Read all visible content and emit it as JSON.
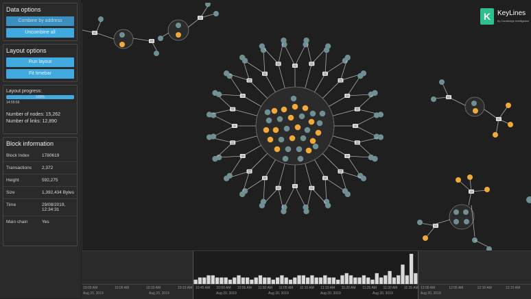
{
  "data_options": {
    "title": "Data options",
    "combine_label": "Combine by address",
    "uncombine_label": "Uncombine all"
  },
  "layout_options": {
    "title": "Layout options",
    "run_label": "Run layout",
    "fit_label": "Fit timebar"
  },
  "progress": {
    "label": "Layout progress:",
    "bar_text": "100%",
    "sub_text": "14:55:59",
    "nodes_text": "Number of nodes: 15,262",
    "links_text": "Number of links: 12,890",
    "fraction": 1.0
  },
  "block_info": {
    "title": "Block information",
    "rows": [
      {
        "key": "Block Index",
        "value": "1780619"
      },
      {
        "key": "Transactions",
        "value": "2,372"
      },
      {
        "key": "Height",
        "value": "592,275"
      },
      {
        "key": "Size",
        "value": "1,392,434 Bytes"
      },
      {
        "key": "Time",
        "value": "29/08/2019, 12:34:31"
      },
      {
        "key": "Main chain",
        "value": "Yes"
      }
    ]
  },
  "logo": {
    "name": "KeyLines",
    "tagline": "by Cambridge Intelligence",
    "mark": "K"
  },
  "colors": {
    "accent": "#3fa9e0",
    "node_gray": "#6f8f92",
    "node_orange": "#f2a93b",
    "link": "#cfcfcf"
  },
  "timebar": {
    "left_ticks": [
      "10:00 AM",
      "10:05 AM",
      "10:10 AM",
      "10:15 AM"
    ],
    "left_dates": [
      "Aug 20, 2019",
      "Aug 20, 2019"
    ],
    "center_ticks": [
      "10:45 AM",
      "10:50 AM",
      "10:55 AM",
      "11:00 AM",
      "11:05 AM",
      "11:10 AM",
      "11:15 AM",
      "11:20 AM",
      "11:25 AM",
      "11:30 AM",
      "11:35 AM"
    ],
    "center_dates": [
      "Aug 20, 2019",
      "Aug 20, 2019",
      "Aug 20, 2019",
      "Aug 20, 2019"
    ],
    "right_ticks": [
      "12:00 AM",
      "12:05 AM",
      "12:10 AM",
      "12:15 AM"
    ],
    "right_dates": [
      "Aug 20, 2019"
    ],
    "histogram": [
      2,
      3,
      3,
      4,
      4,
      3,
      3,
      3,
      2,
      3,
      4,
      3,
      3,
      2,
      3,
      4,
      3,
      3,
      2,
      3,
      4,
      3,
      2,
      3,
      4,
      4,
      3,
      4,
      3,
      3,
      4,
      3,
      3,
      2,
      4,
      5,
      4,
      3,
      3,
      4,
      3,
      2,
      5,
      3,
      4,
      6,
      3,
      4,
      9,
      4,
      14,
      5
    ]
  }
}
